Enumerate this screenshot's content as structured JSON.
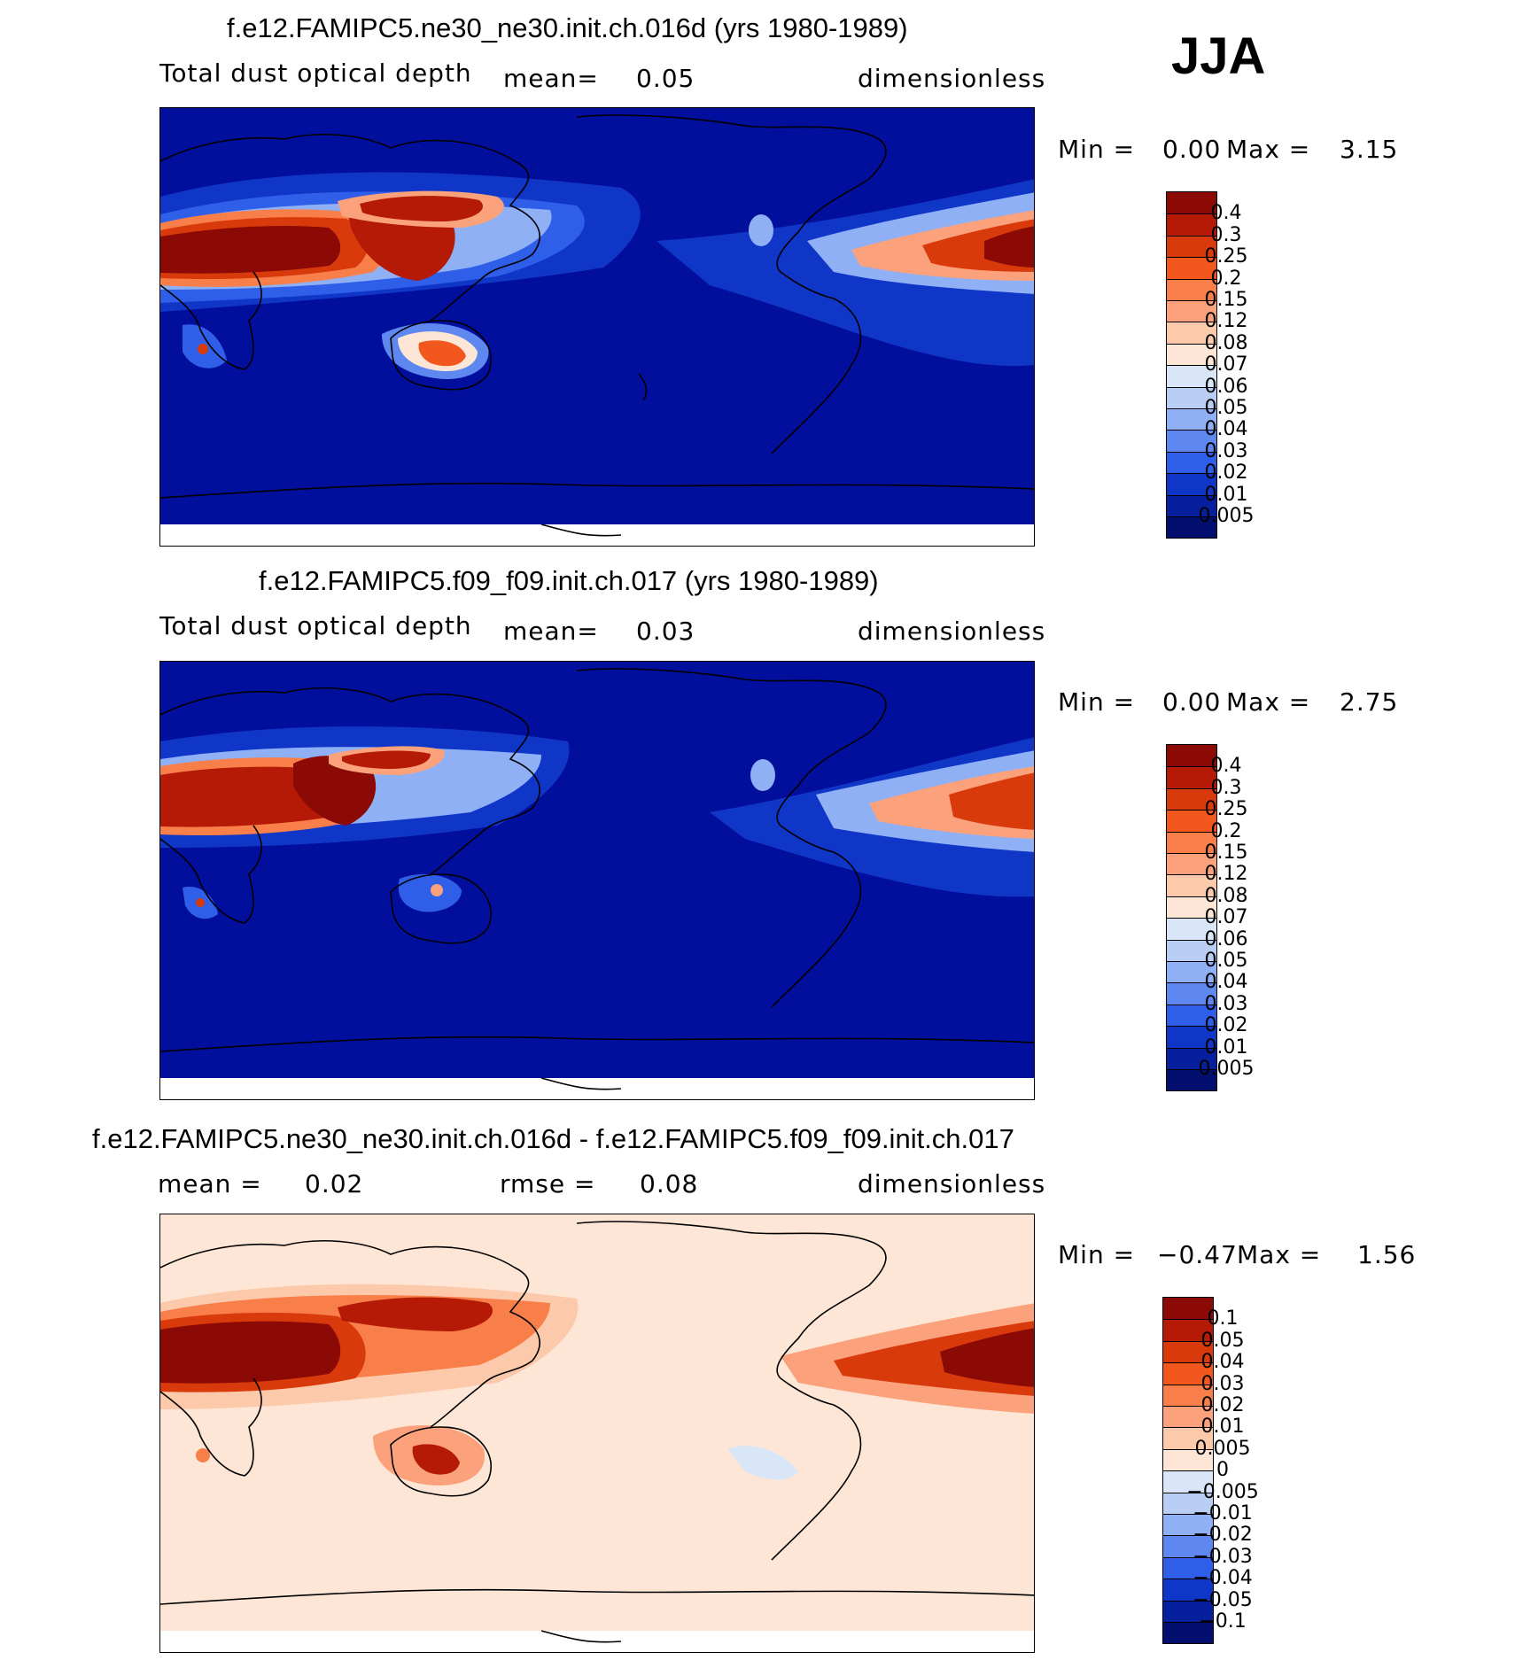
{
  "season": "JJA",
  "panels": [
    {
      "title": "f.e12.FAMIPC5.ne30_ne30.init.ch.016d (yrs 1980-1989)",
      "left_label": "Total dust optical depth",
      "mean_label": "mean=",
      "mean_value": "0.05",
      "units": "dimensionless",
      "min_label": "Min =",
      "min_value": "0.00",
      "max_label": "Max =",
      "max_value": "3.15",
      "colorbar_labels": [
        "0.4",
        "0.3",
        "0.25",
        "0.2",
        "0.15",
        "0.12",
        "0.08",
        "0.07",
        "0.06",
        "0.05",
        "0.04",
        "0.03",
        "0.02",
        "0.01",
        "0.005"
      ],
      "colorbar_colors": [
        "#8b0a05",
        "#b41a06",
        "#d93a0b",
        "#f2581d",
        "#f97f4a",
        "#fba27d",
        "#fdc9ab",
        "#fde6d5",
        "#d9e6f7",
        "#b9cef5",
        "#8fb0f5",
        "#5f87f0",
        "#2f5ee8",
        "#1036c8",
        "#061f9c",
        "#020f6e"
      ]
    },
    {
      "title": "f.e12.FAMIPC5.f09_f09.init.ch.017 (yrs 1980-1989)",
      "left_label": "Total dust optical depth",
      "mean_label": "mean=",
      "mean_value": "0.03",
      "units": "dimensionless",
      "min_label": "Min =",
      "min_value": "0.00",
      "max_label": "Max =",
      "max_value": "2.75",
      "colorbar_labels": [
        "0.4",
        "0.3",
        "0.25",
        "0.2",
        "0.15",
        "0.12",
        "0.08",
        "0.07",
        "0.06",
        "0.05",
        "0.04",
        "0.03",
        "0.02",
        "0.01",
        "0.005"
      ],
      "colorbar_colors": [
        "#8b0a05",
        "#b41a06",
        "#d93a0b",
        "#f2581d",
        "#f97f4a",
        "#fba27d",
        "#fdc9ab",
        "#fde6d5",
        "#d9e6f7",
        "#b9cef5",
        "#8fb0f5",
        "#5f87f0",
        "#2f5ee8",
        "#1036c8",
        "#061f9c",
        "#020f6e"
      ]
    },
    {
      "title": "f.e12.FAMIPC5.ne30_ne30.init.ch.016d - f.e12.FAMIPC5.f09_f09.init.ch.017",
      "left_label": "",
      "mean_label": "mean =",
      "mean_value": "0.02",
      "rmse_label": "rmse =",
      "rmse_value": "0.08",
      "units": "dimensionless",
      "min_label": "Min =",
      "min_value": "−0.47",
      "max_label": "Max =",
      "max_value": "1.56",
      "colorbar_labels": [
        "0.1",
        "0.05",
        "0.04",
        "0.03",
        "0.02",
        "0.01",
        "0.005",
        "0",
        "−0.005",
        "−0.01",
        "−0.02",
        "−0.03",
        "−0.04",
        "−0.05",
        "−0.1"
      ],
      "colorbar_colors": [
        "#8b0a05",
        "#b41a06",
        "#d93a0b",
        "#f2581d",
        "#f97f4a",
        "#fba27d",
        "#fdc9ab",
        "#fde6d5",
        "#d9e6f7",
        "#b9cef5",
        "#8fb0f5",
        "#5f87f0",
        "#2f5ee8",
        "#1036c8",
        "#061f9c",
        "#020f6e"
      ]
    }
  ],
  "colors": {
    "ocean_low": "#020f9c",
    "diff_background": "#fde6d5",
    "coastline": "#000000"
  }
}
